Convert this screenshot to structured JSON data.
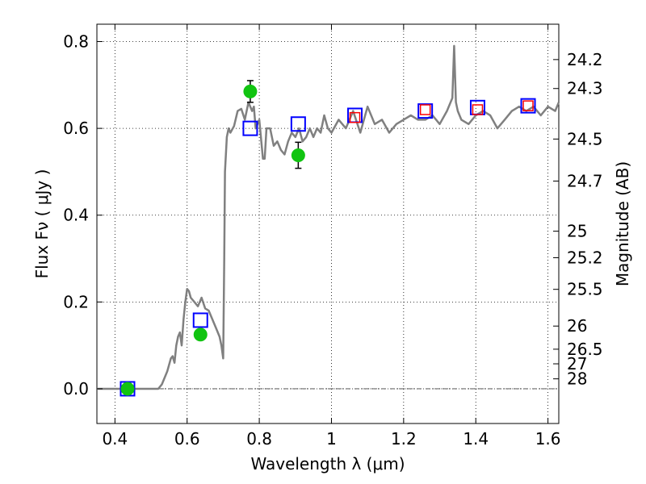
{
  "chart_data": {
    "type": "line",
    "xlabel": "Wavelength  λ (μm)",
    "ylabel": "Flux  Fν  ( μJy )",
    "ylabel_right": "Magnitude (AB)",
    "xlim": [
      0.35,
      1.63
    ],
    "ylim": [
      -0.08,
      0.84
    ],
    "grid": true,
    "x_ticks": [
      0.4,
      0.6,
      0.8,
      1.0,
      1.2,
      1.4,
      1.6
    ],
    "x_tick_labels": [
      "0.4",
      "0.6",
      "0.8",
      "1",
      "1.2",
      "1.4",
      "1.6"
    ],
    "y_ticks": [
      0.0,
      0.2,
      0.4,
      0.6,
      0.8
    ],
    "y_tick_labels": [
      "0.0",
      "0.2",
      "0.4",
      "0.6",
      "0.8"
    ],
    "right_ticks": [
      {
        "flux": 0.7585,
        "label": "24.2"
      },
      {
        "flux": 0.6918,
        "label": "24.3"
      },
      {
        "flux": 0.5754,
        "label": "24.5"
      },
      {
        "flux": 0.4786,
        "label": "24.7"
      },
      {
        "flux": 0.3631,
        "label": "25"
      },
      {
        "flux": 0.302,
        "label": "25.2"
      },
      {
        "flux": 0.2291,
        "label": "25.5"
      },
      {
        "flux": 0.1445,
        "label": "26"
      },
      {
        "flux": 0.0912,
        "label": "26.5"
      },
      {
        "flux": 0.0575,
        "label": "27"
      },
      {
        "flux": 0.0229,
        "label": "28"
      }
    ],
    "colors": {
      "sed": "#808080",
      "observed": "#11c411",
      "model_box": "#0000ff",
      "model_box2": "#ff0000",
      "errorbar": "#000000"
    },
    "series": [
      {
        "kind": "sed_line",
        "x": [
          0.35,
          0.4,
          0.45,
          0.5,
          0.52,
          0.53,
          0.545,
          0.555,
          0.56,
          0.565,
          0.57,
          0.575,
          0.58,
          0.585,
          0.59,
          0.595,
          0.6,
          0.605,
          0.61,
          0.62,
          0.63,
          0.64,
          0.65,
          0.66,
          0.67,
          0.68,
          0.69,
          0.695,
          0.7,
          0.703,
          0.705,
          0.71,
          0.715,
          0.72,
          0.73,
          0.74,
          0.75,
          0.76,
          0.77,
          0.78,
          0.785,
          0.79,
          0.8,
          0.81,
          0.815,
          0.82,
          0.83,
          0.84,
          0.85,
          0.86,
          0.87,
          0.88,
          0.89,
          0.9,
          0.91,
          0.92,
          0.93,
          0.94,
          0.95,
          0.96,
          0.97,
          0.98,
          0.99,
          1.0,
          1.02,
          1.04,
          1.06,
          1.08,
          1.1,
          1.12,
          1.14,
          1.16,
          1.18,
          1.2,
          1.22,
          1.24,
          1.26,
          1.28,
          1.3,
          1.32,
          1.335,
          1.34,
          1.345,
          1.35,
          1.36,
          1.38,
          1.4,
          1.42,
          1.44,
          1.46,
          1.48,
          1.5,
          1.52,
          1.54,
          1.56,
          1.58,
          1.6,
          1.62,
          1.63
        ],
        "y": [
          0.0,
          0.0,
          0.0,
          0.0,
          0.0,
          0.01,
          0.04,
          0.07,
          0.075,
          0.06,
          0.1,
          0.12,
          0.13,
          0.1,
          0.16,
          0.2,
          0.23,
          0.225,
          0.21,
          0.2,
          0.19,
          0.21,
          0.185,
          0.18,
          0.16,
          0.14,
          0.12,
          0.1,
          0.07,
          0.3,
          0.5,
          0.58,
          0.6,
          0.59,
          0.605,
          0.64,
          0.645,
          0.62,
          0.66,
          0.64,
          0.65,
          0.6,
          0.62,
          0.53,
          0.53,
          0.6,
          0.6,
          0.56,
          0.57,
          0.55,
          0.54,
          0.57,
          0.59,
          0.58,
          0.6,
          0.57,
          0.58,
          0.6,
          0.58,
          0.6,
          0.59,
          0.63,
          0.6,
          0.59,
          0.62,
          0.6,
          0.64,
          0.59,
          0.65,
          0.61,
          0.62,
          0.59,
          0.61,
          0.62,
          0.63,
          0.62,
          0.62,
          0.63,
          0.61,
          0.64,
          0.67,
          0.79,
          0.66,
          0.64,
          0.62,
          0.61,
          0.63,
          0.64,
          0.63,
          0.6,
          0.62,
          0.64,
          0.65,
          0.64,
          0.65,
          0.63,
          0.65,
          0.64,
          0.66
        ]
      },
      {
        "kind": "observed_points",
        "x": [
          0.435,
          0.637,
          0.775,
          0.908
        ],
        "y": [
          0.0,
          0.125,
          0.685,
          0.538
        ],
        "err": [
          0.005,
          0.012,
          0.025,
          0.03
        ]
      },
      {
        "kind": "model_boxes",
        "x": [
          0.435,
          0.637,
          0.775,
          0.908,
          1.065,
          1.26,
          1.405,
          1.545
        ],
        "y": [
          0.0,
          0.158,
          0.6,
          0.61,
          0.63,
          0.64,
          0.648,
          0.652
        ]
      },
      {
        "kind": "model_boxes_small",
        "x": [
          1.065,
          1.26,
          1.405,
          1.545
        ],
        "y": [
          0.625,
          0.643,
          0.643,
          0.652
        ]
      }
    ]
  }
}
